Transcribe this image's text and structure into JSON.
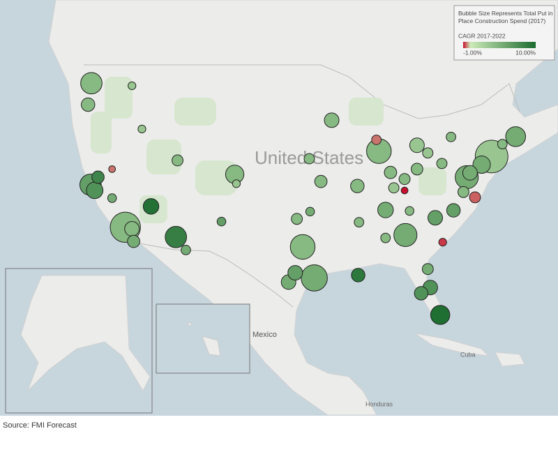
{
  "legend": {
    "size_title": "Bubble Size Represents Total Put in Place Construction Spend (2017)",
    "color_title": "CAGR 2017-2022",
    "color_scale": [
      {
        "value": -1,
        "label": "-1.00%"
      },
      {
        "value": 10,
        "label": "10.00%"
      }
    ]
  },
  "map_labels": [
    "United States",
    "Mexico",
    "Cuba",
    "Honduras"
  ],
  "source": "Source: FMI Forecast",
  "bubbles": [
    {
      "lon": -122.3,
      "lat": 47.6,
      "size": 30,
      "cagr": 4
    },
    {
      "lon": -122.7,
      "lat": 45.5,
      "size": 12,
      "cagr": 4
    },
    {
      "lon": -117.4,
      "lat": 47.7,
      "size": 4,
      "cagr": 3
    },
    {
      "lon": -116.2,
      "lat": 43.6,
      "size": 4,
      "cagr": 3
    },
    {
      "lon": -122.4,
      "lat": 37.8,
      "size": 30,
      "cagr": 6
    },
    {
      "lon": -121.9,
      "lat": 37.3,
      "size": 18,
      "cagr": 7
    },
    {
      "lon": -121.5,
      "lat": 38.6,
      "size": 10,
      "cagr": 8
    },
    {
      "lon": -119.8,
      "lat": 36.7,
      "size": 5,
      "cagr": 5
    },
    {
      "lon": -118.2,
      "lat": 34.0,
      "size": 60,
      "cagr": 4
    },
    {
      "lon": -117.2,
      "lat": 32.7,
      "size": 10,
      "cagr": 5
    },
    {
      "lon": -117.4,
      "lat": 33.9,
      "size": 14,
      "cagr": 4
    },
    {
      "lon": -115.1,
      "lat": 36.2,
      "size": 16,
      "cagr": 9.5
    },
    {
      "lon": -112.1,
      "lat": 33.4,
      "size": 30,
      "cagr": 8.5
    },
    {
      "lon": -110.9,
      "lat": 32.2,
      "size": 6,
      "cagr": 5
    },
    {
      "lon": -111.9,
      "lat": 40.8,
      "size": 8,
      "cagr": 4
    },
    {
      "lon": -119.8,
      "lat": 39.5,
      "size": 3,
      "cagr": -0.5
    },
    {
      "lon": -105.0,
      "lat": 39.7,
      "size": 22,
      "cagr": 4
    },
    {
      "lon": -104.8,
      "lat": 38.8,
      "size": 4,
      "cagr": 3
    },
    {
      "lon": -106.6,
      "lat": 35.1,
      "size": 5,
      "cagr": 6
    },
    {
      "lon": -96.8,
      "lat": 32.8,
      "size": 40,
      "cagr": 4
    },
    {
      "lon": -95.4,
      "lat": 29.8,
      "size": 45,
      "cagr": 5
    },
    {
      "lon": -97.7,
      "lat": 30.3,
      "size": 14,
      "cagr": 6
    },
    {
      "lon": -98.5,
      "lat": 29.4,
      "size": 14,
      "cagr": 5
    },
    {
      "lon": -97.5,
      "lat": 35.5,
      "size": 8,
      "cagr": 4
    },
    {
      "lon": -95.9,
      "lat": 36.2,
      "size": 5,
      "cagr": 5
    },
    {
      "lon": -94.6,
      "lat": 39.1,
      "size": 10,
      "cagr": 4
    },
    {
      "lon": -96.0,
      "lat": 41.3,
      "size": 7,
      "cagr": 4
    },
    {
      "lon": -93.3,
      "lat": 45.0,
      "size": 14,
      "cagr": 4
    },
    {
      "lon": -87.6,
      "lat": 41.9,
      "size": 40,
      "cagr": 4
    },
    {
      "lon": -87.9,
      "lat": 43.0,
      "size": 6,
      "cagr": -0.5
    },
    {
      "lon": -83.0,
      "lat": 42.3,
      "size": 14,
      "cagr": 3
    },
    {
      "lon": -86.2,
      "lat": 39.8,
      "size": 10,
      "cagr": 4
    },
    {
      "lon": -83.0,
      "lat": 40.0,
      "size": 9,
      "cagr": 4
    },
    {
      "lon": -81.7,
      "lat": 41.5,
      "size": 7,
      "cagr": 3
    },
    {
      "lon": -80.0,
      "lat": 40.4,
      "size": 7,
      "cagr": 4
    },
    {
      "lon": -90.2,
      "lat": 38.6,
      "size": 12,
      "cagr": 4
    },
    {
      "lon": -86.8,
      "lat": 36.2,
      "size": 16,
      "cagr": 5
    },
    {
      "lon": -90.0,
      "lat": 35.1,
      "size": 6,
      "cagr": 4
    },
    {
      "lon": -85.8,
      "lat": 38.3,
      "size": 7,
      "cagr": 3
    },
    {
      "lon": -84.5,
      "lat": 39.1,
      "size": 8,
      "cagr": 4
    },
    {
      "lon": -84.4,
      "lat": 33.7,
      "size": 35,
      "cagr": 5
    },
    {
      "lon": -80.8,
      "lat": 35.2,
      "size": 14,
      "cagr": 6
    },
    {
      "lon": -78.6,
      "lat": 35.8,
      "size": 12,
      "cagr": 6
    },
    {
      "lon": -79.9,
      "lat": 32.8,
      "size": 4,
      "cagr": -0.8
    },
    {
      "lon": -81.7,
      "lat": 30.3,
      "size": 8,
      "cagr": 5
    },
    {
      "lon": -81.4,
      "lat": 28.5,
      "size": 14,
      "cagr": 7
    },
    {
      "lon": -82.5,
      "lat": 28.0,
      "size": 12,
      "cagr": 7
    },
    {
      "lon": -80.2,
      "lat": 25.8,
      "size": 24,
      "cagr": 9.8
    },
    {
      "lon": -90.1,
      "lat": 30.0,
      "size": 12,
      "cagr": 9
    },
    {
      "lon": -86.8,
      "lat": 33.5,
      "size": 6,
      "cagr": 4
    },
    {
      "lon": -77.0,
      "lat": 38.9,
      "size": 35,
      "cagr": 5
    },
    {
      "lon": -76.6,
      "lat": 39.3,
      "size": 14,
      "cagr": 5
    },
    {
      "lon": -75.2,
      "lat": 40.0,
      "size": 20,
      "cagr": 5
    },
    {
      "lon": -74.0,
      "lat": 40.7,
      "size": 70,
      "cagr": 3
    },
    {
      "lon": -71.1,
      "lat": 42.4,
      "size": 26,
      "cagr": 5
    },
    {
      "lon": -72.7,
      "lat": 41.8,
      "size": 6,
      "cagr": 4
    },
    {
      "lon": -78.9,
      "lat": 42.9,
      "size": 6,
      "cagr": 4
    },
    {
      "lon": -77.4,
      "lat": 37.5,
      "size": 8,
      "cagr": 4
    },
    {
      "lon": -76.0,
      "lat": 36.9,
      "size": 8,
      "cagr": -0.6
    },
    {
      "lon": -83.9,
      "lat": 36.0,
      "size": 5,
      "cagr": 4
    },
    {
      "lon": -84.5,
      "lat": 38.0,
      "size": 3,
      "cagr": -1
    }
  ]
}
